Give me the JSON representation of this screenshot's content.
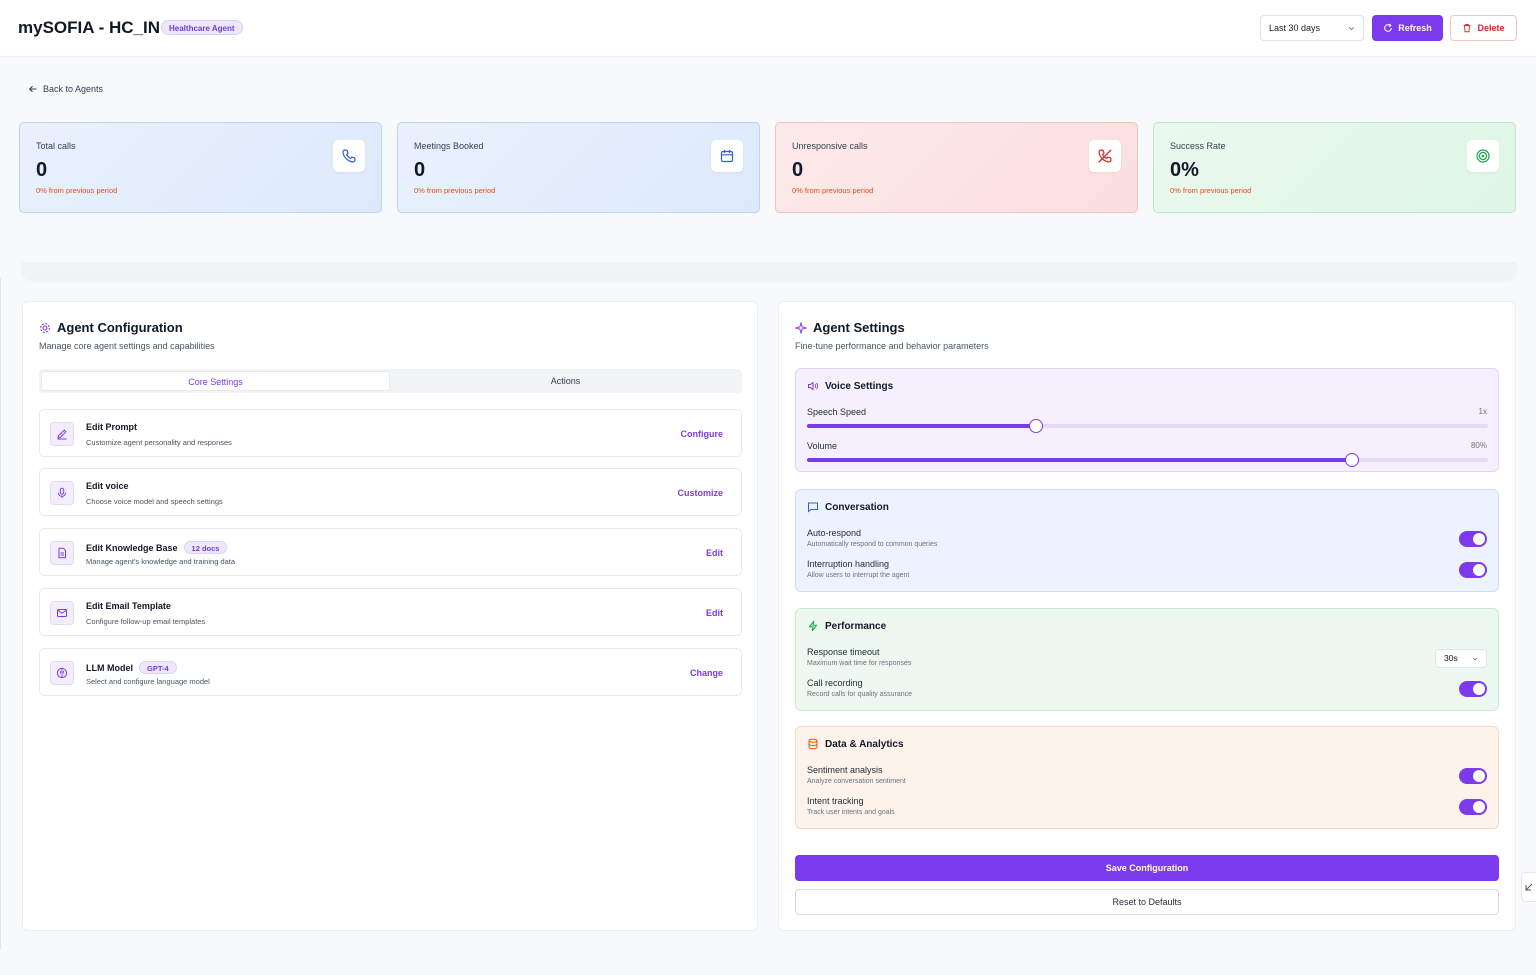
{
  "header": {
    "title": "mySOFIA - HC_IN",
    "badge": "Healthcare Agent",
    "period": "Last 30 days",
    "refresh_label": "Refresh",
    "delete_label": "Delete"
  },
  "back_label": "Back to Agents",
  "stats": [
    {
      "label": "Total calls",
      "value": "0",
      "delta": "0% from previous period",
      "icon": "phone-icon"
    },
    {
      "label": "Meetings Booked",
      "value": "0",
      "delta": "0% from previous period",
      "icon": "calendar-icon"
    },
    {
      "label": "Unresponsive calls",
      "value": "0",
      "delta": "0% from previous period",
      "icon": "phone-missed-icon"
    },
    {
      "label": "Success Rate",
      "value": "0%",
      "delta": "0% from previous period",
      "icon": "target-icon"
    }
  ],
  "config": {
    "title": "Agent Configuration",
    "subtitle": "Manage core agent settings and capabilities",
    "tabs": [
      "Core Settings",
      "Actions"
    ],
    "items": [
      {
        "title": "Edit Prompt",
        "desc": "Customize agent personality and responses",
        "action": "Configure",
        "pill": "",
        "icon": "pencil-icon"
      },
      {
        "title": "Edit voice",
        "desc": "Choose voice model and speech settings",
        "action": "Customize",
        "pill": "",
        "icon": "microphone-icon"
      },
      {
        "title": "Edit Knowledge Base",
        "desc": "Manage agent's knowledge and training data",
        "action": "Edit",
        "pill": "12 docs",
        "icon": "document-icon"
      },
      {
        "title": "Edit Email Template",
        "desc": "Configure follow-up email templates",
        "action": "Edit",
        "pill": "",
        "icon": "mail-icon"
      },
      {
        "title": "LLM Model",
        "desc": "Select and configure language model",
        "action": "Change",
        "pill": "GPT-4",
        "icon": "brain-icon"
      }
    ]
  },
  "settings": {
    "title": "Agent Settings",
    "subtitle": "Fine-tune performance and behavior parameters",
    "voice": {
      "title": "Voice Settings",
      "speech_label": "Speech Speed",
      "speech_value": "1x",
      "speech_level": 0.337,
      "volume_label": "Volume",
      "volume_value": "80%",
      "volume_level": 0.8
    },
    "conversation": {
      "title": "Conversation",
      "rows": [
        {
          "label": "Auto-respond",
          "desc": "Automatically respond to common queries",
          "on": true
        },
        {
          "label": "Interruption handling",
          "desc": "Allow users to interrupt the agent",
          "on": true
        }
      ]
    },
    "performance": {
      "title": "Performance",
      "timeout_label": "Response timeout",
      "timeout_desc": "Maximum wait time for responses",
      "timeout_value": "30s",
      "recording_label": "Call recording",
      "recording_desc": "Record calls for quality assurance",
      "recording_on": true
    },
    "data": {
      "title": "Data & Analytics",
      "rows": [
        {
          "label": "Sentiment analysis",
          "desc": "Analyze conversation sentiment",
          "on": true
        },
        {
          "label": "Intent tracking",
          "desc": "Track user intents and goals",
          "on": true
        }
      ]
    },
    "save_label": "Save Configuration",
    "reset_label": "Reset to Defaults"
  },
  "colors": {
    "accent": "#7c3aed",
    "danger": "#dc2626",
    "delta": "#e04f1d"
  }
}
